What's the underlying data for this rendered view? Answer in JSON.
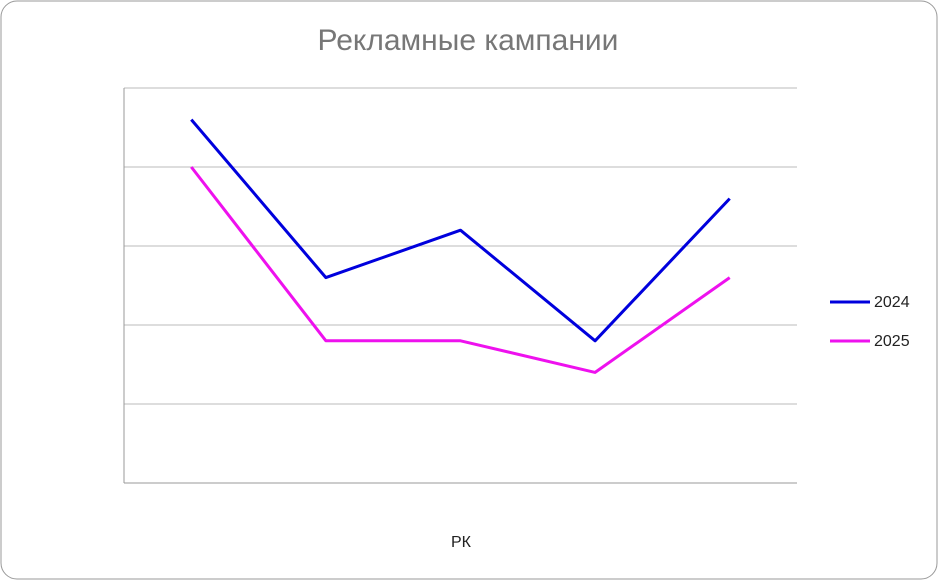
{
  "chart_data": {
    "type": "line",
    "title": "Рекламные кампании",
    "x_label": "РК",
    "categories": [
      null,
      null,
      null,
      null,
      null
    ],
    "series": [
      {
        "name": "2024",
        "color": "#0000dd",
        "values": [
          4.6,
          2.6,
          3.2,
          1.8,
          3.6
        ]
      },
      {
        "name": "2025",
        "color": "#ee11ee",
        "values": [
          4.0,
          1.8,
          1.8,
          1.4,
          2.6
        ]
      }
    ],
    "ylim": [
      0,
      5
    ],
    "yticks": [
      0,
      1,
      2,
      3,
      4,
      5
    ],
    "grid": true,
    "legend": "right"
  }
}
